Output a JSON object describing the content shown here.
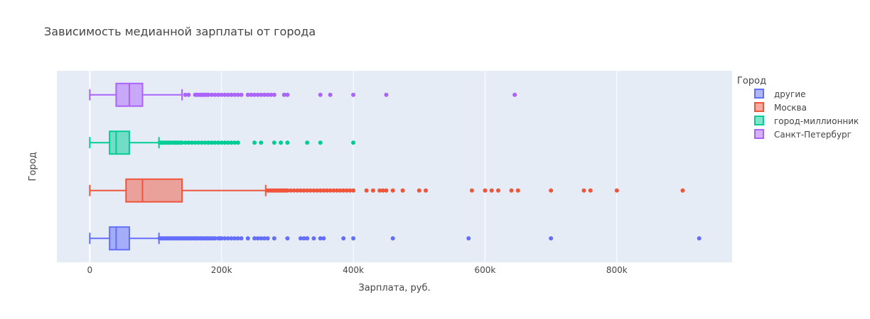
{
  "chart_data": {
    "type": "box",
    "orientation": "horizontal",
    "title": "Зависимость медианной зарплаты от города",
    "xlabel": "Зарплата, руб.",
    "ylabel": "Город",
    "xlim": [
      -50000,
      975000
    ],
    "x_ticks": [
      {
        "value": 0,
        "label": "0"
      },
      {
        "value": 200000,
        "label": "200k"
      },
      {
        "value": 400000,
        "label": "400k"
      },
      {
        "value": 600000,
        "label": "600k"
      },
      {
        "value": 800000,
        "label": "800k"
      }
    ],
    "grid": true,
    "plot_background": "#e5ecf6",
    "legend": {
      "title": "Город",
      "position": "right"
    },
    "series": [
      {
        "name": "другие",
        "color": "#636efa",
        "min": 0,
        "q1": 30000,
        "median": 40000,
        "q3": 60000,
        "upper_fence": 105000,
        "outliers": [
          106000,
          108000,
          110000,
          112000,
          114000,
          116000,
          118000,
          120000,
          122000,
          124000,
          126000,
          128000,
          130000,
          132000,
          134000,
          136000,
          138000,
          140000,
          142000,
          144000,
          146000,
          148000,
          150000,
          152000,
          155000,
          158000,
          160000,
          162000,
          165000,
          168000,
          170000,
          172000,
          175000,
          178000,
          180000,
          182000,
          185000,
          188000,
          190000,
          195000,
          198000,
          200000,
          205000,
          210000,
          215000,
          220000,
          225000,
          230000,
          240000,
          250000,
          255000,
          260000,
          265000,
          270000,
          280000,
          300000,
          320000,
          325000,
          330000,
          340000,
          350000,
          355000,
          385000,
          400000,
          460000,
          575000,
          700000,
          925000
        ]
      },
      {
        "name": "Москва",
        "color": "#ef553b",
        "min": 0,
        "q1": 55000,
        "median": 80000,
        "q3": 140000,
        "upper_fence": 267000,
        "outliers": [
          270000,
          272000,
          275000,
          278000,
          280000,
          283000,
          285000,
          288000,
          290000,
          293000,
          295000,
          298000,
          300000,
          305000,
          310000,
          315000,
          320000,
          325000,
          330000,
          335000,
          340000,
          345000,
          350000,
          355000,
          360000,
          365000,
          370000,
          375000,
          380000,
          385000,
          390000,
          395000,
          400000,
          420000,
          430000,
          440000,
          445000,
          450000,
          460000,
          475000,
          500000,
          510000,
          580000,
          600000,
          610000,
          620000,
          640000,
          650000,
          700000,
          750000,
          760000,
          800000,
          900000
        ]
      },
      {
        "name": "город-миллионник",
        "color": "#00cc96",
        "min": 0,
        "q1": 30000,
        "median": 40000,
        "q3": 60000,
        "upper_fence": 105000,
        "outliers": [
          106000,
          108000,
          110000,
          112000,
          115000,
          118000,
          120000,
          122000,
          125000,
          128000,
          130000,
          132000,
          135000,
          138000,
          140000,
          145000,
          150000,
          155000,
          160000,
          165000,
          170000,
          175000,
          180000,
          185000,
          190000,
          195000,
          200000,
          205000,
          210000,
          215000,
          220000,
          225000,
          250000,
          260000,
          280000,
          290000,
          300000,
          330000,
          350000,
          400000
        ]
      },
      {
        "name": "Санкт-Петербург",
        "color": "#ab63fa",
        "min": 0,
        "q1": 40000,
        "median": 60000,
        "q3": 80000,
        "upper_fence": 140000,
        "outliers": [
          145000,
          150000,
          160000,
          162000,
          165000,
          168000,
          170000,
          172000,
          175000,
          178000,
          180000,
          185000,
          190000,
          195000,
          200000,
          205000,
          210000,
          215000,
          220000,
          225000,
          230000,
          240000,
          245000,
          250000,
          255000,
          260000,
          265000,
          270000,
          275000,
          280000,
          295000,
          300000,
          350000,
          365000,
          400000,
          450000,
          645000
        ]
      }
    ]
  }
}
